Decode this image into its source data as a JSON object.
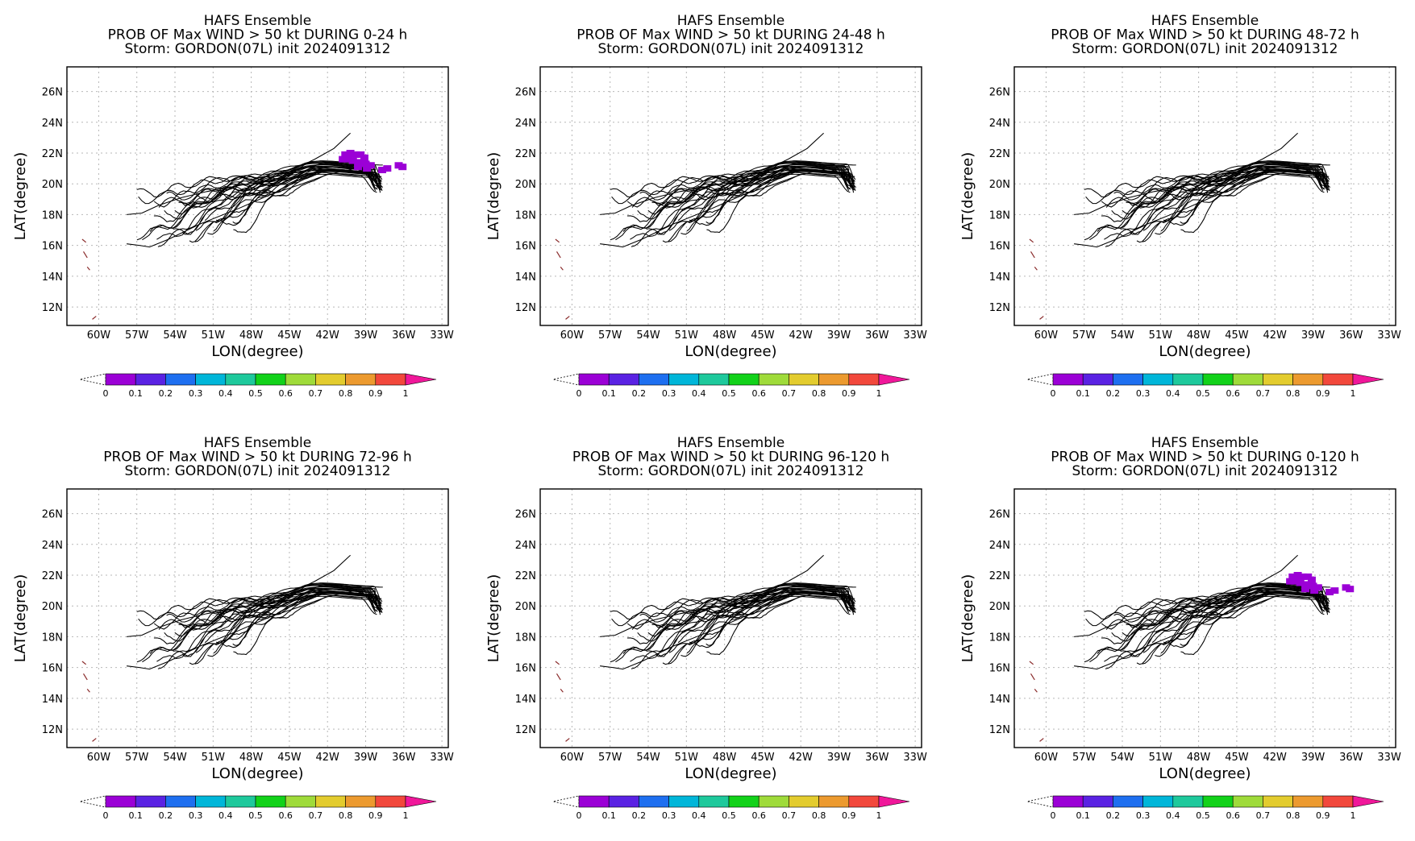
{
  "figure": {
    "panels": [
      {
        "title_lines": [
          "HAFS Ensemble",
          "PROB OF Max WIND > 50 kt DURING  0-24 h",
          "Storm: GORDON(07L) init 2024091312"
        ]
      },
      {
        "title_lines": [
          "HAFS Ensemble",
          "PROB OF Max WIND > 50 kt DURING 24-48 h",
          "Storm: GORDON(07L) init 2024091312"
        ]
      },
      {
        "title_lines": [
          "HAFS Ensemble",
          "PROB OF Max WIND > 50 kt DURING 48-72 h",
          "Storm: GORDON(07L) init 2024091312"
        ]
      },
      {
        "title_lines": [
          "HAFS Ensemble",
          "PROB OF Max WIND > 50 kt DURING 72-96 h",
          "Storm: GORDON(07L) init 2024091312"
        ]
      },
      {
        "title_lines": [
          "HAFS Ensemble",
          "PROB OF Max WIND > 50 kt DURING 96-120 h",
          "Storm: GORDON(07L) init 2024091312"
        ]
      },
      {
        "title_lines": [
          "HAFS Ensemble",
          "PROB OF Max WIND > 50 kt DURING 0-120 h",
          "Storm: GORDON(07L) init 2024091312"
        ]
      }
    ]
  },
  "chart_data": {
    "type": "map",
    "xlabel": "LON(degree)",
    "ylabel": "LAT(degree)",
    "xlim": [
      -62.5,
      -32.5
    ],
    "ylim": [
      10.8,
      27.6
    ],
    "grid": true,
    "x_ticks": [
      -60,
      -57,
      -54,
      -51,
      -48,
      -45,
      -42,
      -39,
      -36,
      -33
    ],
    "x_tick_labels": [
      "60W",
      "57W",
      "54W",
      "51W",
      "48W",
      "45W",
      "42W",
      "39W",
      "36W",
      "33W"
    ],
    "y_ticks": [
      12,
      14,
      16,
      18,
      20,
      22,
      24,
      26
    ],
    "y_tick_labels": [
      "12N",
      "14N",
      "16N",
      "18N",
      "20N",
      "22N",
      "24N",
      "26N"
    ],
    "colorbar": {
      "labels": [
        "0",
        "0.1",
        "0.2",
        "0.3",
        "0.4",
        "0.5",
        "0.6",
        "0.7",
        "0.8",
        "0.9",
        "1"
      ],
      "colors": [
        "#9b00d6",
        "#5a22e3",
        "#1e6ff0",
        "#00b6d9",
        "#1ec99c",
        "#12d21a",
        "#9fdb3a",
        "#e3cc2e",
        "#ec9a2f",
        "#f2483c"
      ],
      "under_color": "#ffffff",
      "over_color": "#f0179a"
    },
    "tracks": {
      "count": 31,
      "color": "#000000",
      "common_end": [
        -37.6,
        19.8
      ],
      "peak_lat_range": [
        20.6,
        21.5
      ],
      "peak_lon": -42.2,
      "start_lon_range": [
        -57.0,
        -48.5
      ],
      "start_lat_range": [
        16.2,
        19.6
      ],
      "outliers": [
        {
          "start": [
            -57.8,
            18.0
          ],
          "path": [
            [
              -57.8,
              18.0
            ],
            [
              -56.6,
              18.1
            ],
            [
              -55.3,
              18.6
            ],
            [
              -53.5,
              19.1
            ],
            [
              -51.5,
              19.5
            ],
            [
              -49.5,
              19.8
            ],
            [
              -47.0,
              20.2
            ],
            [
              -45.0,
              20.8
            ],
            [
              -43.0,
              21.6
            ],
            [
              -41.5,
              22.3
            ],
            [
              -40.2,
              23.3
            ]
          ]
        },
        {
          "start": [
            -57.8,
            16.1
          ],
          "path": [
            [
              -57.8,
              16.1
            ],
            [
              -56.8,
              16.0
            ],
            [
              -56.0,
              15.9
            ],
            [
              -54.5,
              16.4
            ],
            [
              -52.0,
              17.4
            ],
            [
              -49.0,
              18.4
            ],
            [
              -46.5,
              19.3
            ],
            [
              -44.0,
              20.0
            ],
            [
              -42.0,
              20.6
            ],
            [
              -39.8,
              21.0
            ],
            [
              -38.7,
              20.6
            ],
            [
              -37.8,
              19.6
            ]
          ]
        }
      ]
    },
    "coast_marks": [
      [
        -61.3,
        16.4
      ],
      [
        -61.0,
        16.2
      ],
      [
        -61.2,
        15.6
      ],
      [
        -60.9,
        15.2
      ],
      [
        -60.9,
        14.6
      ],
      [
        -60.7,
        14.4
      ],
      [
        -60.5,
        11.2
      ],
      [
        -60.2,
        11.4
      ]
    ],
    "prob_patches": [
      {
        "panel": 0,
        "cells": [
          [
            -40.6,
            21.9,
            0.05
          ],
          [
            -40.2,
            22.0,
            0.05
          ],
          [
            -39.8,
            21.9,
            0.05
          ],
          [
            -39.4,
            21.9,
            0.05
          ],
          [
            -39.1,
            21.7,
            0.05
          ],
          [
            -40.8,
            21.6,
            0.05
          ],
          [
            -40.4,
            21.6,
            0.05
          ],
          [
            -40.0,
            21.5,
            0.05
          ],
          [
            -39.5,
            21.4,
            0.05
          ],
          [
            -39.0,
            21.3,
            0.05
          ],
          [
            -38.6,
            21.2,
            0.05
          ],
          [
            -38.9,
            21.0,
            0.05
          ],
          [
            -39.6,
            21.1,
            0.05
          ],
          [
            -37.7,
            20.9,
            0.05
          ],
          [
            -37.3,
            21.0,
            0.05
          ],
          [
            -36.4,
            21.2,
            0.05
          ],
          [
            -36.1,
            21.1,
            0.05
          ]
        ]
      },
      {
        "panel": 1,
        "cells": []
      },
      {
        "panel": 2,
        "cells": []
      },
      {
        "panel": 3,
        "cells": []
      },
      {
        "panel": 4,
        "cells": []
      },
      {
        "panel": 5,
        "cells": [
          [
            -40.6,
            21.9,
            0.05
          ],
          [
            -40.2,
            22.0,
            0.05
          ],
          [
            -39.8,
            21.9,
            0.05
          ],
          [
            -39.4,
            21.9,
            0.05
          ],
          [
            -39.1,
            21.7,
            0.05
          ],
          [
            -40.8,
            21.6,
            0.05
          ],
          [
            -40.4,
            21.6,
            0.05
          ],
          [
            -40.0,
            21.5,
            0.05
          ],
          [
            -39.5,
            21.4,
            0.05
          ],
          [
            -39.0,
            21.3,
            0.05
          ],
          [
            -38.6,
            21.2,
            0.05
          ],
          [
            -38.9,
            21.0,
            0.05
          ],
          [
            -39.6,
            21.1,
            0.05
          ],
          [
            -37.7,
            20.9,
            0.05
          ],
          [
            -37.3,
            21.0,
            0.05
          ],
          [
            -36.4,
            21.2,
            0.05
          ],
          [
            -36.1,
            21.1,
            0.05
          ]
        ]
      }
    ]
  }
}
